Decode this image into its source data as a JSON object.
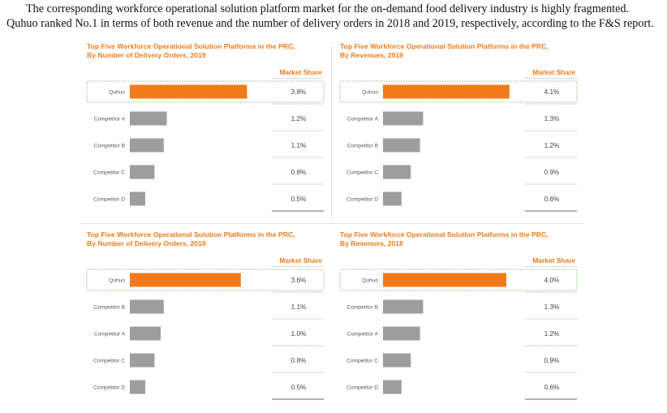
{
  "intro_text": "The corresponding workforce operational solution platform market for the on-demand food delivery industry is highly fragmented. Quhuo ranked No.1 in terms of both revenue and the number of delivery orders in 2018 and 2019, respectively, according to the F&S report.",
  "colors": {
    "accent": "#f07b18",
    "bar_other": "#9d9d9d",
    "highlight_border": "#6aa84f"
  },
  "chart_data": [
    {
      "type": "bar",
      "orientation": "horizontal",
      "title_line1": "Top Five Workforce Operational Solution Platforms in the PRC,",
      "title_line2": "By Number of Delivery Orders, 2019",
      "legend": "Market Share",
      "categories": [
        "Quhuo",
        "Competitor A",
        "Competitor B",
        "Competitor C",
        "Competitor D"
      ],
      "values": [
        3.8,
        1.2,
        1.1,
        0.8,
        0.5
      ],
      "value_labels": [
        "3.8%",
        "1.2%",
        "1.1%",
        "0.8%",
        "0.5%"
      ],
      "highlight": "Quhuo"
    },
    {
      "type": "bar",
      "orientation": "horizontal",
      "title_line1": "Top Five Workforce Operational Solution Platforms in the PRC,",
      "title_line2": "By Revenues, 2019",
      "legend": "Market Share",
      "categories": [
        "Quhuo",
        "Competitor A",
        "Competitor B",
        "Competitor C",
        "Competitor D"
      ],
      "values": [
        4.1,
        1.3,
        1.2,
        0.9,
        0.6
      ],
      "value_labels": [
        "4.1%",
        "1.3%",
        "1.2%",
        "0.9%",
        "0.6%"
      ],
      "highlight": "Quhuo"
    },
    {
      "type": "bar",
      "orientation": "horizontal",
      "title_line1": "Top Five Workforce Operational Solution Platforms in the PRC,",
      "title_line2": "By Number of Delivery Orders, 2018",
      "legend": "Market Share",
      "categories": [
        "Quhuo",
        "Competitor B",
        "Competitor A",
        "Competitor C",
        "Competitor D"
      ],
      "values": [
        3.6,
        1.1,
        1.0,
        0.8,
        0.5
      ],
      "value_labels": [
        "3.6%",
        "1.1%",
        "1.0%",
        "0.8%",
        "0.5%"
      ],
      "highlight": "Quhuo"
    },
    {
      "type": "bar",
      "orientation": "horizontal",
      "title_line1": "Top Five Workforce Operational Solution Platforms in the PRC,",
      "title_line2": "By Revenues, 2018",
      "legend": "Market Share",
      "categories": [
        "Quhuo",
        "Competitor B",
        "Competitor A",
        "Competitor C",
        "Competitor D"
      ],
      "values": [
        4.0,
        1.3,
        1.2,
        0.9,
        0.6
      ],
      "value_labels": [
        "4.0%",
        "1.3%",
        "1.2%",
        "0.9%",
        "0.6%"
      ],
      "highlight": "Quhuo"
    }
  ]
}
